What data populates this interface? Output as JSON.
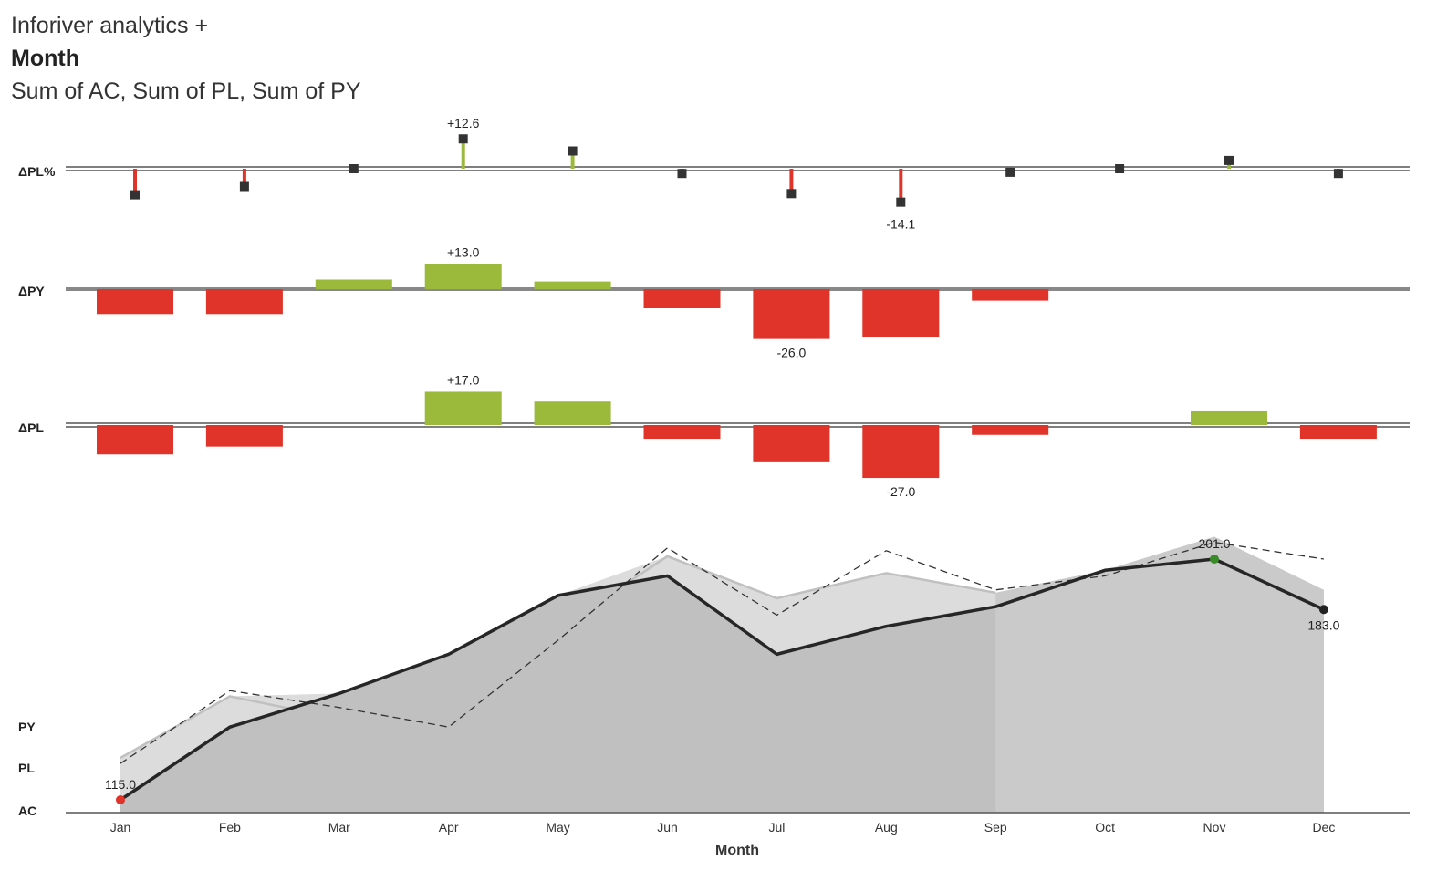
{
  "header": {
    "app_title": "Inforiver analytics +",
    "chart_title": "Month",
    "chart_subtitle": "Sum of AC, Sum of PL, Sum of PY"
  },
  "colors": {
    "positive": "#9bba3c",
    "negative": "#e0342a",
    "marker": "#333333",
    "ac_line": "#262626",
    "pl_line": "#c0c0c0",
    "py_line": "#333333",
    "area_light": "#dcdcdc",
    "area_dark": "#c0c0c0",
    "area_forecast": "#cacaca",
    "axis": "#555555",
    "zero_line": "#888888",
    "ac_min_dot": "#e0342a",
    "ac_max_dot": "#3a8a2a",
    "ac_end_dot": "#222222"
  },
  "chart_data": [
    {
      "id": "dpl_pct",
      "type": "pin",
      "row_label": "ΔPL%",
      "categories": [
        "Jan",
        "Feb",
        "Mar",
        "Apr",
        "May",
        "Jun",
        "Jul",
        "Aug",
        "Sep",
        "Oct",
        "Nov",
        "Dec"
      ],
      "values": [
        -11,
        -7.5,
        0,
        12.6,
        7.5,
        -2,
        -10.5,
        -14.1,
        -1.5,
        0,
        3.5,
        -2
      ],
      "labels": [
        {
          "category": "Apr",
          "text": "+12.6"
        },
        {
          "category": "Aug",
          "text": "-14.1"
        }
      ]
    },
    {
      "id": "dpy",
      "type": "bar",
      "row_label": "ΔPY",
      "categories": [
        "Jan",
        "Feb",
        "Mar",
        "Apr",
        "May",
        "Jun",
        "Jul",
        "Aug",
        "Sep",
        "Oct",
        "Nov",
        "Dec"
      ],
      "values": [
        -13,
        -13,
        5,
        13.0,
        4,
        -10,
        -26.0,
        -25,
        -6,
        0,
        0,
        0
      ],
      "labels": [
        {
          "category": "Apr",
          "text": "+13.0"
        },
        {
          "category": "Jul",
          "text": "-26.0"
        }
      ]
    },
    {
      "id": "dpl",
      "type": "bar",
      "row_label": "ΔPL",
      "categories": [
        "Jan",
        "Feb",
        "Mar",
        "Apr",
        "May",
        "Jun",
        "Jul",
        "Aug",
        "Sep",
        "Oct",
        "Nov",
        "Dec"
      ],
      "values": [
        -15,
        -11,
        0,
        17.0,
        12,
        -7,
        -19,
        -27.0,
        -5,
        0,
        7,
        -7
      ],
      "labels": [
        {
          "category": "Apr",
          "text": "+17.0"
        },
        {
          "category": "Aug",
          "text": "-27.0"
        }
      ]
    },
    {
      "id": "main",
      "type": "line",
      "categories": [
        "Jan",
        "Feb",
        "Mar",
        "Apr",
        "May",
        "Jun",
        "Jul",
        "Aug",
        "Sep",
        "Oct",
        "Nov",
        "Dec"
      ],
      "xlabel": "Month",
      "ylim": [
        109,
        227
      ],
      "row_labels": [
        "PY",
        "PL",
        "AC"
      ],
      "series": [
        {
          "name": "AC",
          "values": [
            115,
            141,
            153,
            167,
            188,
            195,
            167,
            177,
            184,
            197,
            201,
            183
          ]
        },
        {
          "name": "PL",
          "values": [
            130,
            152,
            144,
            145,
            176,
            202,
            187,
            196,
            189,
            197,
            209,
            190
          ]
        },
        {
          "name": "PY",
          "values": [
            128,
            154,
            148,
            141,
            172,
            205,
            181,
            204,
            190,
            195,
            207,
            201
          ]
        }
      ],
      "forecast_start": "Sep",
      "labels": [
        {
          "category": "Jan",
          "text": "115.0",
          "position": "above"
        },
        {
          "category": "Nov",
          "text": "201.0",
          "position": "above"
        },
        {
          "category": "Dec",
          "text": "183.0",
          "position": "below"
        }
      ]
    }
  ]
}
